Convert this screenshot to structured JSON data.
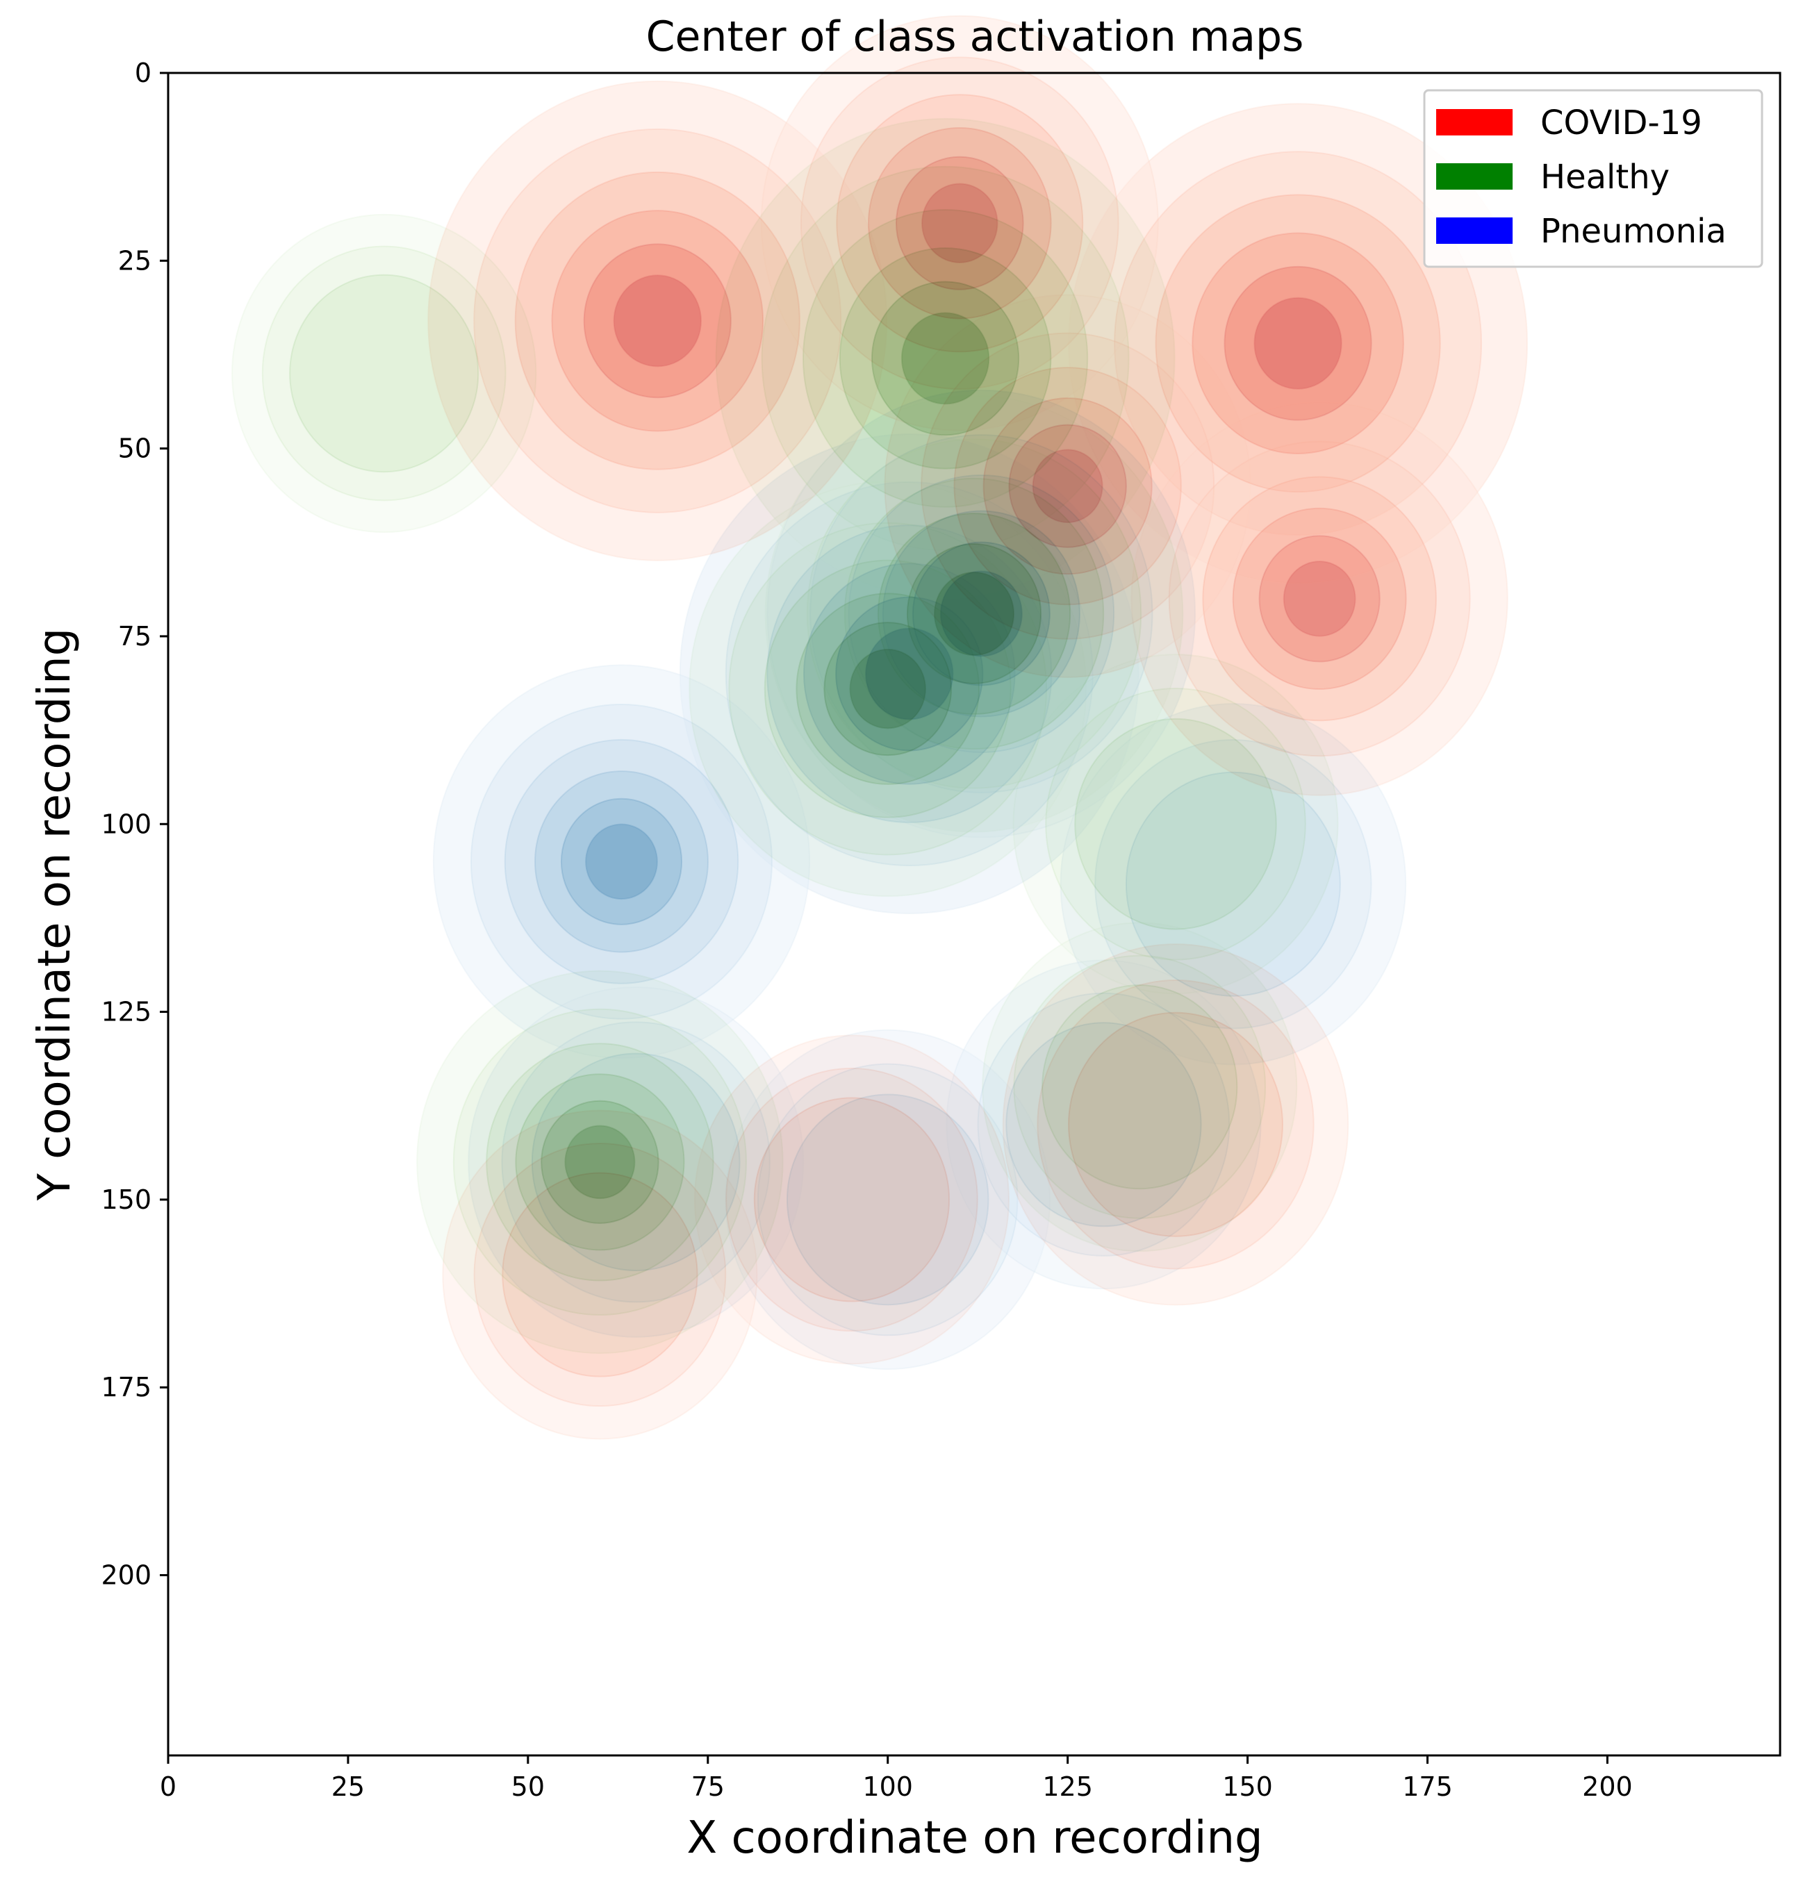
{
  "chart_data": {
    "type": "kde-contour",
    "title": "Center of class activation maps",
    "xlabel": "X coordinate on recording",
    "ylabel": "Y coordinate on recording",
    "xlim": [
      0,
      224
    ],
    "ylim": [
      224,
      0
    ],
    "y_inverted": true,
    "xticks": [
      0,
      25,
      50,
      75,
      100,
      125,
      150,
      175,
      200
    ],
    "yticks": [
      0,
      25,
      50,
      75,
      100,
      125,
      150,
      175,
      200
    ],
    "legend_position": "top-right",
    "series": [
      {
        "name": "COVID-19",
        "color": "#ff0000",
        "peaks": [
          {
            "x": 68,
            "y": 33,
            "weight": 1.0
          },
          {
            "x": 157,
            "y": 36,
            "weight": 1.0
          },
          {
            "x": 110,
            "y": 20,
            "weight": 0.7
          },
          {
            "x": 125,
            "y": 55,
            "weight": 0.55
          },
          {
            "x": 160,
            "y": 70,
            "weight": 0.6
          },
          {
            "x": 140,
            "y": 140,
            "weight": 0.45
          },
          {
            "x": 95,
            "y": 150,
            "weight": 0.3
          },
          {
            "x": 60,
            "y": 160,
            "weight": 0.3
          }
        ]
      },
      {
        "name": "Healthy",
        "color": "#008000",
        "peaks": [
          {
            "x": 108,
            "y": 38,
            "weight": 1.0
          },
          {
            "x": 112,
            "y": 72,
            "weight": 0.8
          },
          {
            "x": 100,
            "y": 82,
            "weight": 0.7
          },
          {
            "x": 60,
            "y": 145,
            "weight": 0.55
          },
          {
            "x": 30,
            "y": 40,
            "weight": 0.25
          },
          {
            "x": 140,
            "y": 100,
            "weight": 0.35
          },
          {
            "x": 135,
            "y": 135,
            "weight": 0.3
          }
        ]
      },
      {
        "name": "Pneumonia",
        "color": "#0000ff",
        "peaks": [
          {
            "x": 103,
            "y": 80,
            "weight": 1.0
          },
          {
            "x": 113,
            "y": 72,
            "weight": 0.85
          },
          {
            "x": 63,
            "y": 105,
            "weight": 0.6
          },
          {
            "x": 148,
            "y": 108,
            "weight": 0.45
          },
          {
            "x": 65,
            "y": 145,
            "weight": 0.4
          },
          {
            "x": 100,
            "y": 150,
            "weight": 0.35
          },
          {
            "x": 130,
            "y": 140,
            "weight": 0.3
          }
        ]
      }
    ]
  }
}
